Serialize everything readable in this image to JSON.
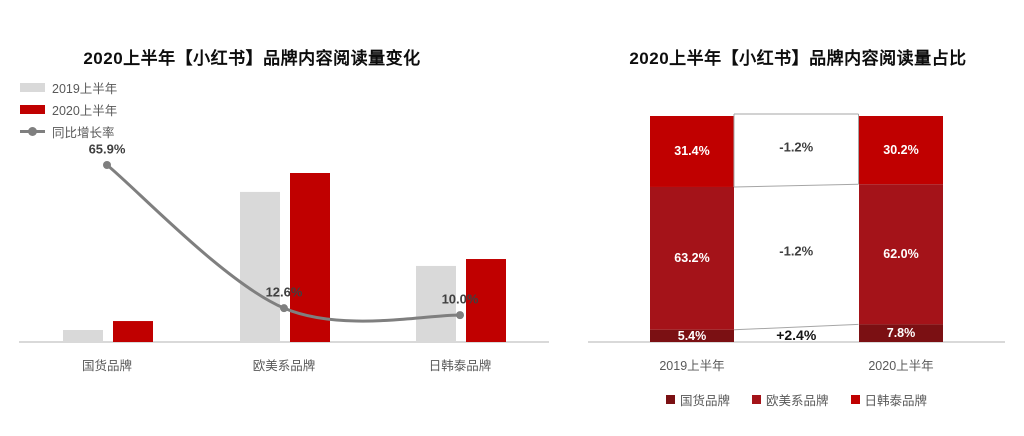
{
  "left_chart": {
    "title": "2020上半年【小红书】品牌内容阅读量变化",
    "legend": [
      {
        "label": "2019上半年",
        "type": "bar",
        "color": "#D9D9D9"
      },
      {
        "label": "2020上半年",
        "type": "bar",
        "color": "#C00000"
      },
      {
        "label": "同比增长率",
        "type": "line",
        "color": "#7F7F7F"
      }
    ],
    "categories": [
      "国货品牌",
      "欧美系品牌",
      "日韩泰品牌"
    ]
  },
  "right_chart": {
    "title": "2020上半年【小红书】品牌内容阅读量占比",
    "x_labels": [
      "2019上半年",
      "2020上半年"
    ],
    "legend": [
      {
        "label": "国货品牌",
        "color": "#7B1013"
      },
      {
        "label": "欧美系品牌",
        "color": "#A41319"
      },
      {
        "label": "日韩泰品牌",
        "color": "#C00000"
      }
    ]
  },
  "chart_data": [
    {
      "type": "bar",
      "subtype": "grouped-bars-with-line",
      "title": "2020上半年【小红书】品牌内容阅读量变化",
      "categories": [
        "国货品牌",
        "欧美系品牌",
        "日韩泰品牌"
      ],
      "series": [
        {
          "name": "2019上半年",
          "role": "bar",
          "color": "#D9D9D9",
          "values_rel": [
            7.1,
            88.8,
            45.0
          ],
          "note": "reading volume, unlabeled axis, indexed to 2020 欧美系=100"
        },
        {
          "name": "2020上半年",
          "role": "bar",
          "color": "#C00000",
          "values_rel": [
            12.4,
            100.0,
            49.1
          ]
        },
        {
          "name": "同比增长率",
          "role": "line",
          "color": "#7F7F7F",
          "values": [
            65.9,
            12.6,
            10.0
          ],
          "unit": "%"
        }
      ],
      "data_labels": [
        "65.9%",
        "12.6%",
        "10.0%"
      ],
      "legend_position": "top-left",
      "grid": false,
      "axis_color": "#D9D9D9"
    },
    {
      "type": "bar",
      "subtype": "stacked-100",
      "title": "2020上半年【小红书】品牌内容阅读量占比",
      "categories": [
        "2019上半年",
        "2020上半年"
      ],
      "series": [
        {
          "name": "国货品牌",
          "color": "#7B1013",
          "values": [
            5.4,
            7.8
          ],
          "labels": [
            "5.4%",
            "7.8%"
          ]
        },
        {
          "name": "欧美系品牌",
          "color": "#A41319",
          "values": [
            63.2,
            62.0
          ],
          "labels": [
            "63.2%",
            "62.0%"
          ]
        },
        {
          "name": "日韩泰品牌",
          "color": "#C00000",
          "values": [
            31.4,
            30.2
          ],
          "labels": [
            "31.4%",
            "30.2%"
          ]
        }
      ],
      "delta_labels_top_down": [
        "-1.2%",
        "-1.2%",
        "+2.4%"
      ],
      "legend_position": "bottom",
      "grid": false,
      "connector_color": "#A6A6A6",
      "axis_color": "#D9D9D9"
    }
  ]
}
